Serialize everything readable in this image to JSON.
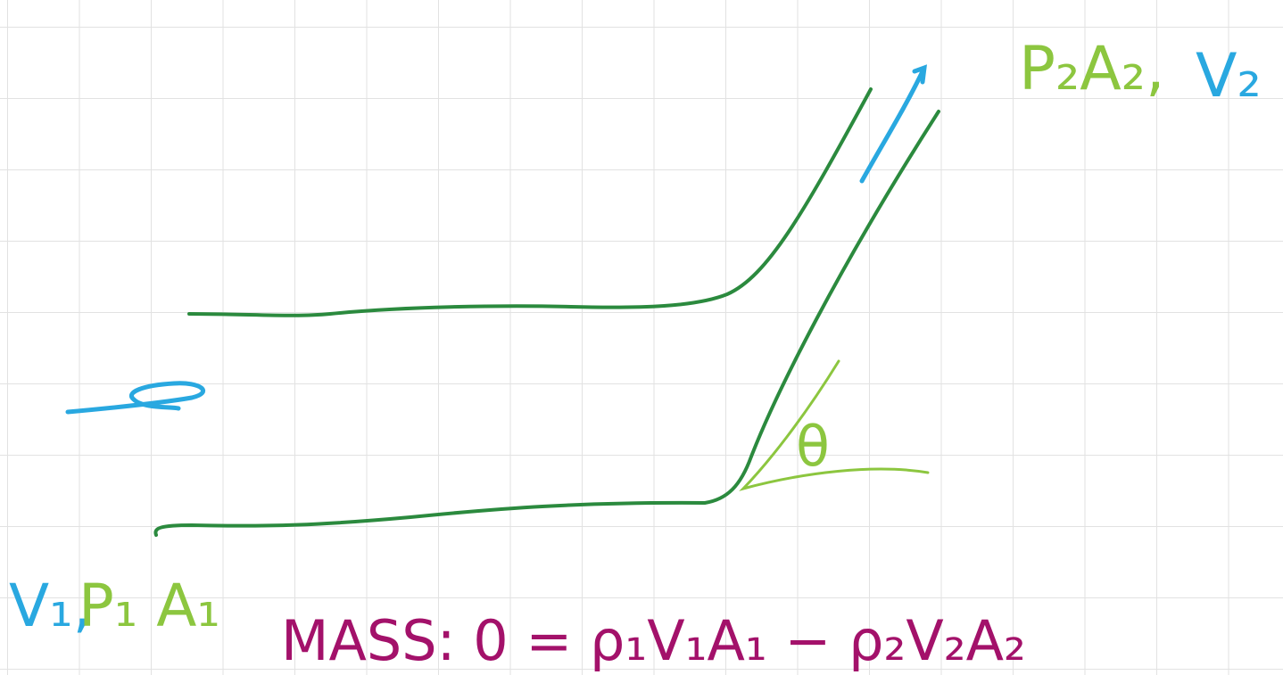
{
  "labels": {
    "outlet_pressure_area": "P₂A₂,",
    "outlet_velocity": "V₂",
    "inlet_velocity": "V₁,",
    "inlet_pressure_area": "P₁ A₁",
    "angle": "θ",
    "equation": "MASS:  0 = ρ₁V₁A₁ − ρ₂V₂A₂"
  }
}
